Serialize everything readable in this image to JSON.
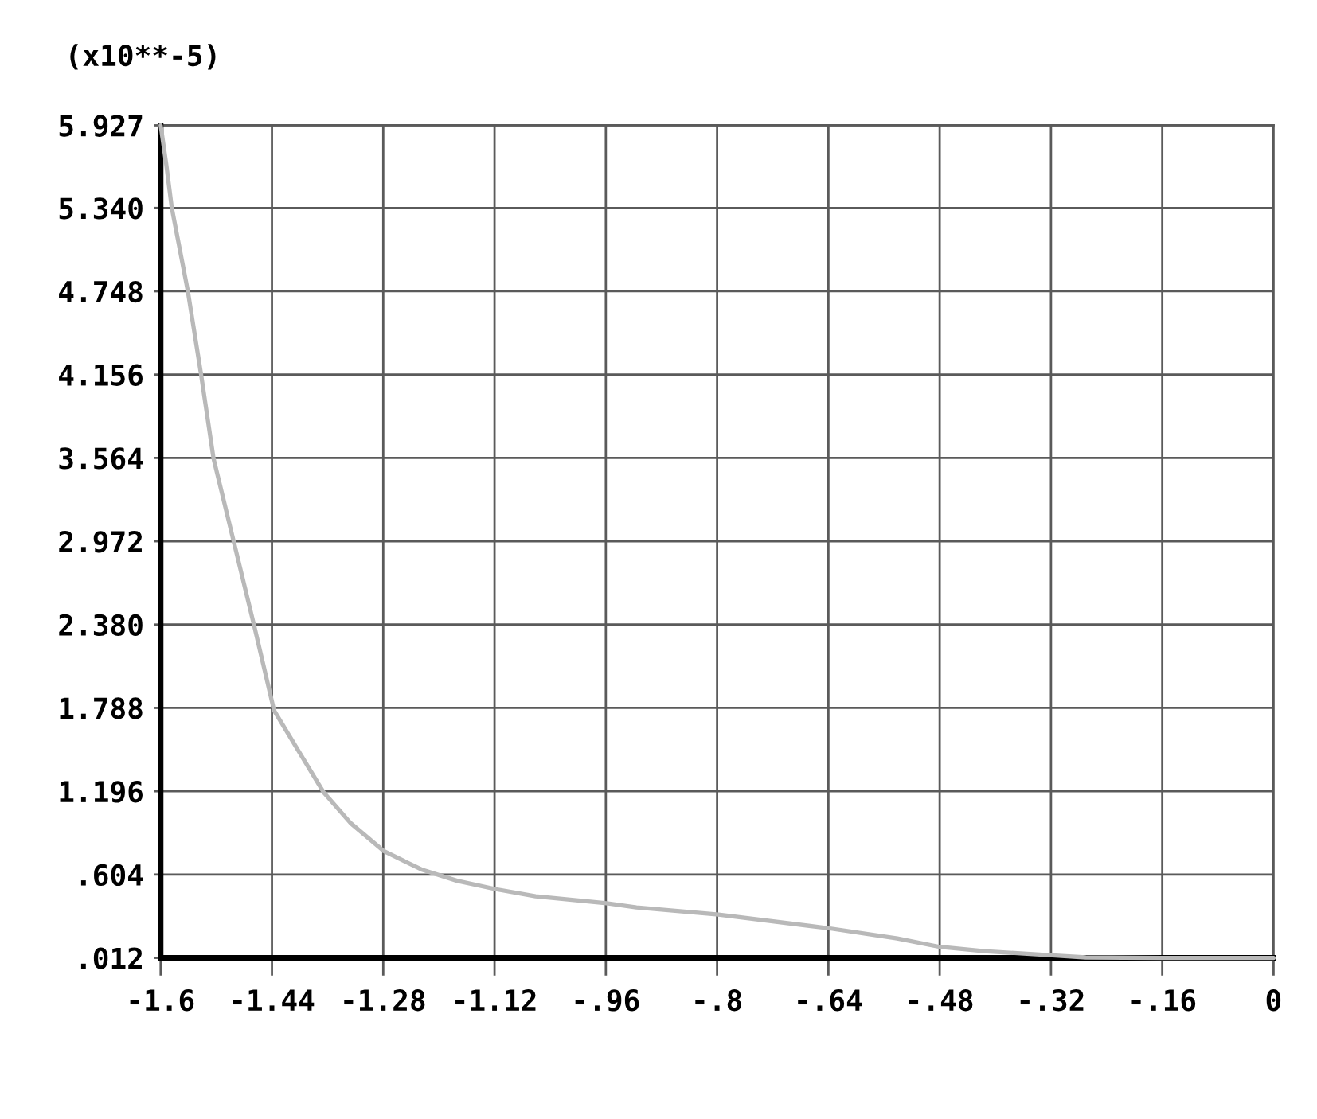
{
  "chart_data": {
    "type": "line",
    "ylabel": "(x10**-5)",
    "x": [
      -1.6,
      -1.592,
      -1.584,
      -1.561,
      -1.542,
      -1.524,
      -1.495,
      -1.465,
      -1.437,
      -1.404,
      -1.366,
      -1.327,
      -1.279,
      -1.225,
      -1.174,
      -1.118,
      -1.061,
      -0.959,
      -0.916,
      -0.798,
      -0.636,
      -0.541,
      -0.48,
      -0.416,
      -0.318,
      -0.27,
      -0.16,
      0
    ],
    "series": [
      {
        "color": "#b9b9b9",
        "values": [
          5.927,
          5.65,
          5.34,
          4.75,
          4.16,
          3.56,
          2.97,
          2.36,
          1.77,
          1.5,
          1.19,
          0.97,
          0.77,
          0.64,
          0.56,
          0.5,
          0.45,
          0.4,
          0.37,
          0.32,
          0.22,
          0.15,
          0.09,
          0.06,
          0.03,
          0.015,
          0.012,
          0.012
        ]
      }
    ],
    "xlim": [
      -1.6,
      0
    ],
    "ylim": [
      0.012,
      5.927
    ],
    "xticks": [
      -1.6,
      -1.44,
      -1.28,
      -1.12,
      {
        "value": -0.96,
        "label": "-.96"
      },
      {
        "value": -0.8,
        "label": "-.8"
      },
      {
        "value": -0.64,
        "label": "-.64"
      },
      {
        "value": -0.48,
        "label": "-.48"
      },
      {
        "value": -0.32,
        "label": "-.32"
      },
      {
        "value": -0.16,
        "label": "-.16"
      },
      0
    ],
    "yticks": [
      {
        "value": 0.012,
        "label": ".012"
      },
      {
        "value": 0.604,
        "label": ".604"
      },
      1.196,
      1.788,
      {
        "value": 2.38,
        "label": "2.380"
      },
      2.972,
      3.564,
      4.156,
      4.748,
      {
        "value": 5.34,
        "label": "5.340"
      },
      5.927
    ],
    "grid": true,
    "marker": "none",
    "line_style": "solid"
  }
}
